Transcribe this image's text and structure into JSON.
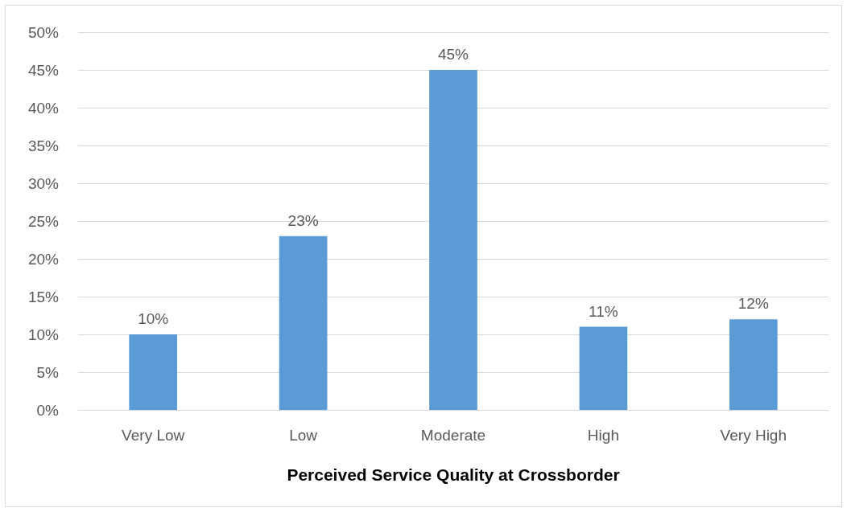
{
  "chart_data": {
    "type": "bar",
    "xlabel": "Perceived Service Quality at Crossborder",
    "categories": [
      "Very Low",
      "Low",
      "Moderate",
      "High",
      "Very High"
    ],
    "values": [
      10,
      23,
      45,
      11,
      12
    ],
    "value_labels": [
      "10%",
      "23%",
      "45%",
      "11%",
      "12%"
    ],
    "color": "#5b9bd5",
    "ylim": [
      0,
      50
    ],
    "yticks": [
      {
        "value": 0,
        "label": "0%"
      },
      {
        "value": 5,
        "label": "5%"
      },
      {
        "value": 10,
        "label": "10%"
      },
      {
        "value": 15,
        "label": "15%"
      },
      {
        "value": 20,
        "label": "20%"
      },
      {
        "value": 25,
        "label": "25%"
      },
      {
        "value": 30,
        "label": "30%"
      },
      {
        "value": 35,
        "label": "35%"
      },
      {
        "value": 40,
        "label": "40%"
      },
      {
        "value": 45,
        "label": "45%"
      },
      {
        "value": 50,
        "label": "50%"
      }
    ],
    "grid": "y"
  }
}
